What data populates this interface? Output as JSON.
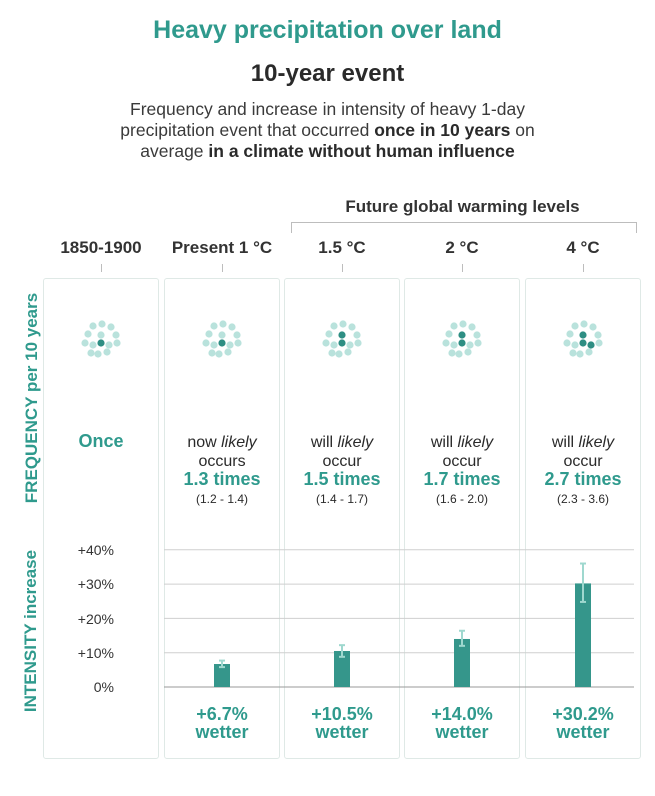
{
  "title": "Heavy precipitation over land",
  "subtitle": "10-year event",
  "description": {
    "line1": "Frequency and increase in intensity of heavy 1-day",
    "line2_pre": "precipitation event that occurred ",
    "line2_bold": "once in 10 years",
    "line2_post": " on",
    "line3_pre": "average ",
    "line3_bold": "in a climate without human influence"
  },
  "future_label": "Future global warming levels",
  "frequency_axis_label": "FREQUENCY per 10 years",
  "intensity_axis_label": "INTENSITY increase",
  "colors": {
    "accent": "#2f9a8d",
    "dot_dark": "#2e8e83",
    "dot_light": "#b9e2dc",
    "bar": "#35968b",
    "error": "#9fd8cf"
  },
  "columns": [
    {
      "label": "1850-1900",
      "freq_once": "Once",
      "times_value": 1.0,
      "dark_dots": 1
    },
    {
      "label": "Present 1 °C",
      "freq_prefix": "now ",
      "freq_likely": "likely",
      "freq_occur": "occurs",
      "times": "1.3 times",
      "range": "(1.2 - 1.4)",
      "times_value": 1.3,
      "dark_dots": 1
    },
    {
      "label": "1.5 °C",
      "freq_prefix": "will ",
      "freq_likely": "likely",
      "freq_occur": "occur",
      "times": "1.5 times",
      "range": "(1.4 - 1.7)",
      "times_value": 1.5,
      "dark_dots": 2
    },
    {
      "label": "2 °C",
      "freq_prefix": "will ",
      "freq_likely": "likely",
      "freq_occur": "occur",
      "times": "1.7 times",
      "range": "(1.6 - 2.0)",
      "times_value": 1.7,
      "dark_dots": 2
    },
    {
      "label": "4 °C",
      "freq_prefix": "will ",
      "freq_likely": "likely",
      "freq_occur": "occur",
      "times": "2.7 times",
      "range": "(2.3 - 3.6)",
      "times_value": 2.7,
      "dark_dots": 3
    }
  ],
  "chart_data": {
    "type": "bar",
    "categories": [
      "1850-1900",
      "Present 1 °C",
      "1.5 °C",
      "2 °C",
      "4 °C"
    ],
    "values": [
      null,
      6.7,
      10.5,
      14.0,
      30.2
    ],
    "error_low": [
      null,
      5.8,
      8.8,
      12.0,
      24.8
    ],
    "error_high": [
      null,
      7.7,
      12.2,
      16.4,
      36.0
    ],
    "ylim": [
      0,
      40
    ],
    "yticks": [
      "0%",
      "+10%",
      "+20%",
      "+30%",
      "+40%"
    ],
    "ytick_values": [
      0,
      10,
      20,
      30,
      40
    ],
    "bar_labels": [
      "",
      "+6.7%",
      "+10.5%",
      "+14.0%",
      "+30.2%"
    ],
    "bar_sublabel": "wetter",
    "grid": true
  }
}
